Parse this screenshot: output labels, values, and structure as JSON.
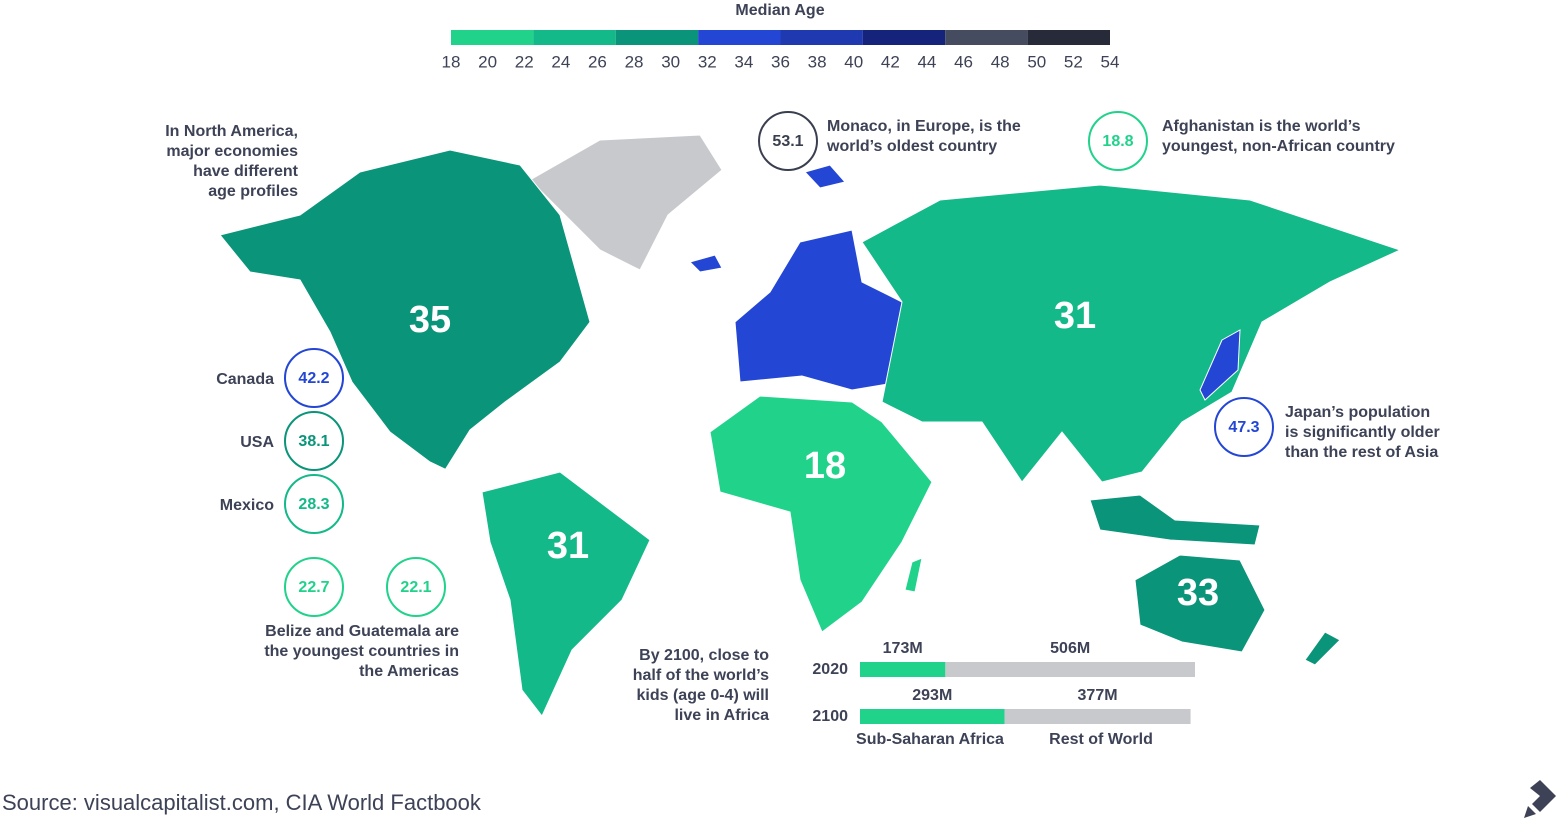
{
  "legend": {
    "title": "Median Age",
    "ticks": [
      18,
      20,
      22,
      24,
      26,
      28,
      30,
      32,
      34,
      36,
      38,
      40,
      42,
      44,
      46,
      48,
      50,
      52,
      54
    ],
    "colors": [
      "#21d28b",
      "#13b988",
      "#0a9479",
      "#2446d4",
      "#1f39b0",
      "#15247a",
      "#454c60",
      "#262a39"
    ]
  },
  "regions": [
    {
      "label": 35,
      "color": "#0a9479"
    },
    {
      "label": 31,
      "color": "#13b988"
    },
    {
      "label": 18,
      "color": "#21d28b"
    },
    {
      "label": 31,
      "color": "#13b988"
    },
    {
      "label": 33,
      "color": "#0a9479"
    }
  ],
  "north_america": {
    "text": [
      "In North America,",
      "major economies",
      "have different",
      "age profiles"
    ],
    "countries": [
      {
        "name": "Canada",
        "value": 42.2,
        "color": "#2446d4"
      },
      {
        "name": "USA",
        "value": 38.1,
        "color": "#0a9479"
      },
      {
        "name": "Mexico",
        "value": 28.3,
        "color": "#13b988"
      }
    ]
  },
  "americas_youngest": {
    "values": [
      22.7,
      22.1
    ],
    "color": "#21d28b",
    "text": [
      "Belize and Guatemala are",
      "the youngest countries in",
      "the Americas"
    ]
  },
  "monaco": {
    "value": 53.1,
    "color": "#3a3f4f",
    "text": [
      "Monaco, in Europe, is the",
      "world’s oldest country"
    ]
  },
  "afghanistan": {
    "value": 18.8,
    "color": "#21d28b",
    "text": [
      "Afghanistan is the world’s",
      "youngest, non-African country"
    ]
  },
  "japan": {
    "value": 47.3,
    "color": "#2446d4",
    "text": [
      "Japan’s population",
      "is significantly older",
      "than the rest of Asia"
    ]
  },
  "africa_note": {
    "text": [
      "By 2100, close to",
      "half of the world’s",
      "kids (age 0-4) will",
      "live in Africa"
    ]
  },
  "kids": {
    "series": [
      {
        "name": "Sub-Saharan Africa",
        "color": "#21d28b"
      },
      {
        "name": "Rest of World",
        "color": "#c8c9cc"
      }
    ],
    "rows": [
      {
        "label": "2020",
        "values": [
          173,
          506
        ],
        "value_labels": [
          "173M",
          "506M"
        ]
      },
      {
        "label": "2100",
        "values": [
          293,
          377
        ],
        "value_labels": [
          "293M",
          "377M"
        ]
      }
    ]
  },
  "source": "Source: visualcapitalist.com, CIA World Factbook"
}
